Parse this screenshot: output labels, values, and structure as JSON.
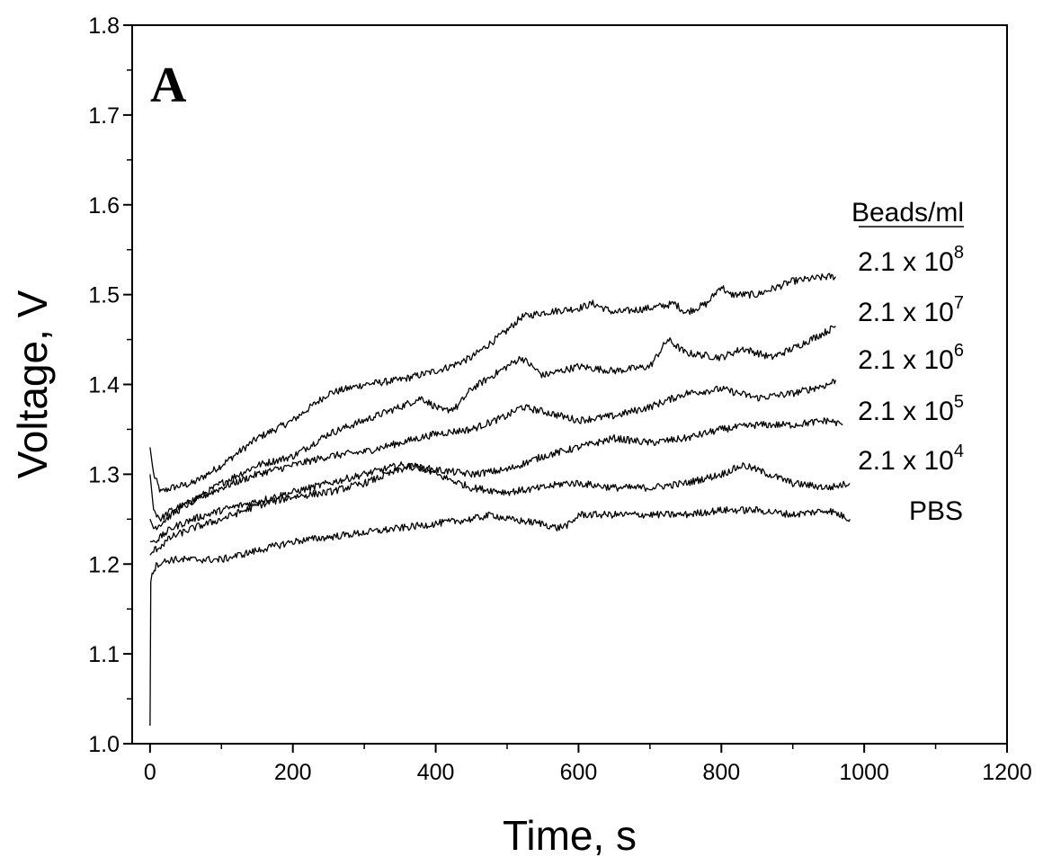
{
  "chart_data": {
    "type": "line",
    "panel_label": "A",
    "xlabel": "Time, s",
    "ylabel": "Voltage, V",
    "xlim": [
      -25,
      1200
    ],
    "ylim": [
      1.0,
      1.8
    ],
    "x_ticks": [
      "0",
      "200",
      "400",
      "600",
      "800",
      "1000",
      "1200"
    ],
    "y_ticks": [
      "1.0",
      "1.1",
      "1.2",
      "1.3",
      "1.4",
      "1.5",
      "1.6",
      "1.7",
      "1.8"
    ],
    "grid": false,
    "legend_title": "Beads/ml",
    "series": [
      {
        "name": "2.1 x 10^8",
        "label_base": "2.1 x 10",
        "label_exp": "8",
        "x": [
          0,
          5,
          15,
          30,
          60,
          100,
          150,
          200,
          250,
          300,
          350,
          400,
          420,
          450,
          500,
          520,
          550,
          600,
          620,
          650,
          700,
          735,
          750,
          780,
          800,
          810,
          850,
          900,
          950,
          960
        ],
        "y": [
          1.33,
          1.3,
          1.28,
          1.285,
          1.29,
          1.31,
          1.34,
          1.36,
          1.39,
          1.4,
          1.405,
          1.415,
          1.42,
          1.43,
          1.46,
          1.475,
          1.48,
          1.485,
          1.49,
          1.48,
          1.485,
          1.49,
          1.48,
          1.49,
          1.51,
          1.5,
          1.5,
          1.515,
          1.52,
          1.52
        ]
      },
      {
        "name": "2.1 x 10^7",
        "label_base": "2.1 x 10",
        "label_exp": "7",
        "x": [
          0,
          5,
          15,
          30,
          60,
          100,
          150,
          200,
          250,
          300,
          350,
          380,
          410,
          430,
          450,
          500,
          520,
          550,
          600,
          650,
          700,
          725,
          750,
          800,
          830,
          870,
          900,
          950,
          960
        ],
        "y": [
          1.3,
          1.26,
          1.25,
          1.26,
          1.27,
          1.29,
          1.31,
          1.32,
          1.345,
          1.36,
          1.375,
          1.385,
          1.37,
          1.375,
          1.395,
          1.42,
          1.43,
          1.41,
          1.42,
          1.415,
          1.42,
          1.45,
          1.435,
          1.43,
          1.44,
          1.43,
          1.44,
          1.46,
          1.465
        ]
      },
      {
        "name": "2.1 x 10^6",
        "label_base": "2.1 x 10",
        "label_exp": "6",
        "x": [
          0,
          5,
          15,
          30,
          60,
          100,
          150,
          200,
          250,
          300,
          350,
          400,
          450,
          500,
          520,
          550,
          600,
          650,
          700,
          750,
          800,
          850,
          900,
          950,
          960
        ],
        "y": [
          1.25,
          1.24,
          1.245,
          1.255,
          1.27,
          1.285,
          1.3,
          1.31,
          1.32,
          1.325,
          1.335,
          1.345,
          1.35,
          1.365,
          1.375,
          1.37,
          1.36,
          1.365,
          1.375,
          1.39,
          1.395,
          1.385,
          1.39,
          1.4,
          1.405
        ]
      },
      {
        "name": "2.1 x 10^5",
        "label_base": "2.1 x 10",
        "label_exp": "5",
        "x": [
          0,
          5,
          15,
          30,
          60,
          100,
          150,
          200,
          250,
          300,
          350,
          400,
          450,
          500,
          550,
          600,
          650,
          700,
          750,
          800,
          850,
          900,
          950,
          970
        ],
        "y": [
          1.225,
          1.225,
          1.23,
          1.24,
          1.25,
          1.26,
          1.27,
          1.28,
          1.29,
          1.3,
          1.31,
          1.305,
          1.3,
          1.305,
          1.32,
          1.33,
          1.34,
          1.335,
          1.34,
          1.35,
          1.355,
          1.355,
          1.36,
          1.355
        ]
      },
      {
        "name": "2.1 x 10^4",
        "label_base": "2.1 x 10",
        "label_exp": "4",
        "x": [
          0,
          5,
          15,
          30,
          60,
          100,
          150,
          200,
          250,
          300,
          350,
          370,
          400,
          450,
          500,
          550,
          580,
          600,
          650,
          700,
          750,
          800,
          830,
          850,
          900,
          950,
          980
        ],
        "y": [
          1.21,
          1.215,
          1.22,
          1.23,
          1.24,
          1.25,
          1.265,
          1.275,
          1.28,
          1.29,
          1.305,
          1.31,
          1.3,
          1.285,
          1.28,
          1.285,
          1.29,
          1.29,
          1.285,
          1.285,
          1.29,
          1.3,
          1.31,
          1.305,
          1.29,
          1.285,
          1.29
        ]
      },
      {
        "name": "PBS",
        "label_base": "PBS",
        "label_exp": "",
        "x": [
          0,
          1,
          3,
          10,
          30,
          60,
          100,
          150,
          200,
          250,
          300,
          350,
          400,
          450,
          480,
          500,
          550,
          570,
          590,
          600,
          650,
          700,
          750,
          800,
          850,
          900,
          950,
          980
        ],
        "y": [
          1.02,
          1.18,
          1.19,
          1.2,
          1.205,
          1.205,
          1.205,
          1.215,
          1.225,
          1.23,
          1.235,
          1.24,
          1.245,
          1.25,
          1.255,
          1.25,
          1.245,
          1.24,
          1.245,
          1.255,
          1.255,
          1.255,
          1.255,
          1.26,
          1.26,
          1.255,
          1.26,
          1.25
        ]
      }
    ]
  }
}
